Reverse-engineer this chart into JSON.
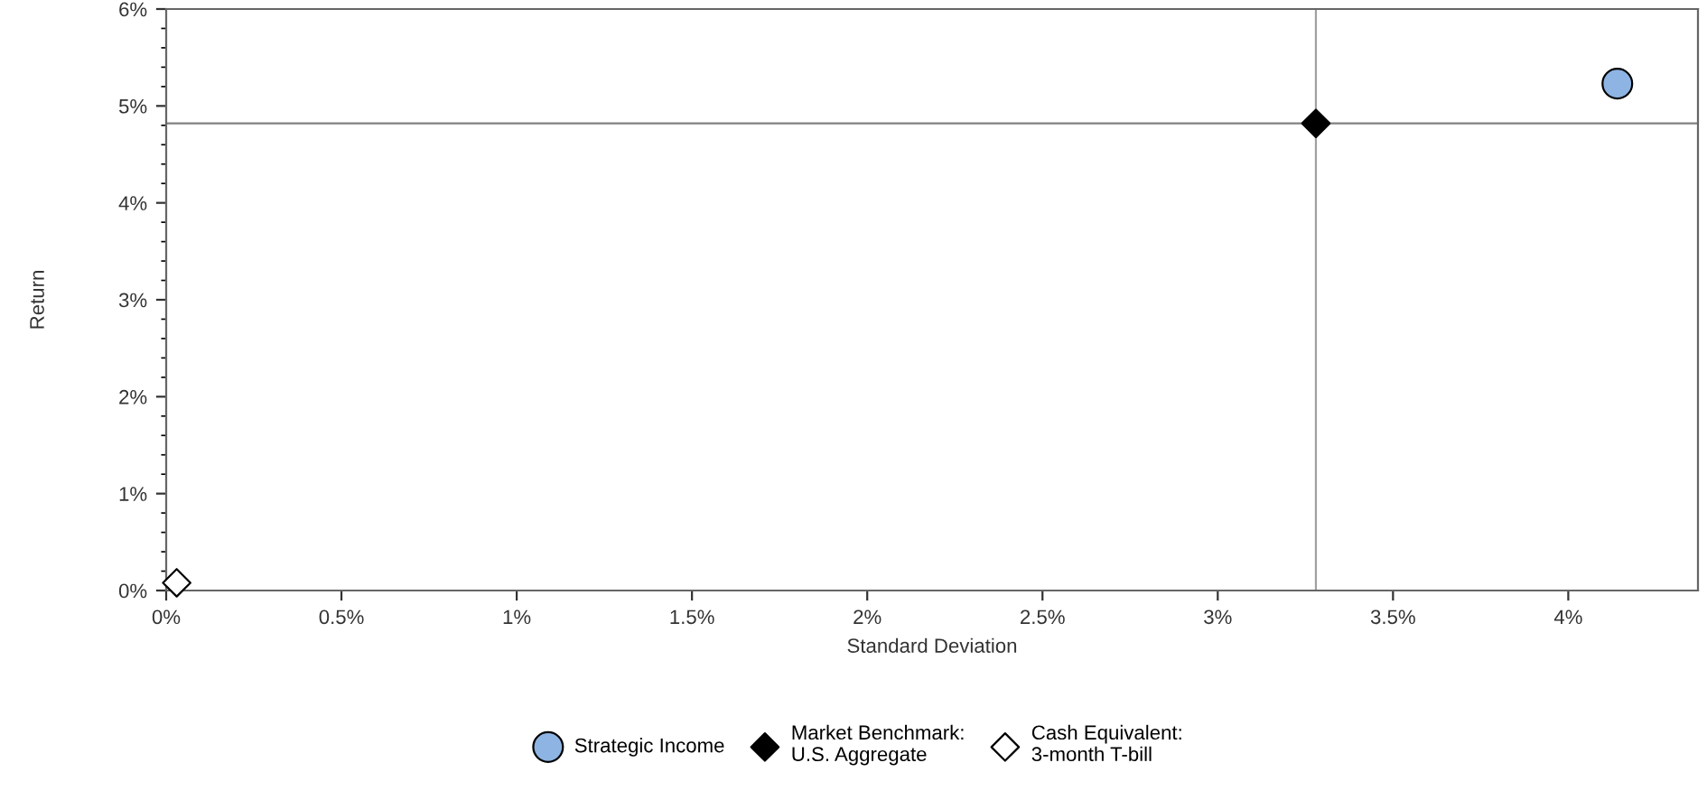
{
  "chart_data": {
    "type": "scatter",
    "xlabel": "Standard Deviation",
    "ylabel": "Return",
    "series": [
      {
        "name": "Strategic Income",
        "color": "#8db4e2",
        "marker": "circle",
        "x": [
          4.14
        ],
        "values": [
          5.23
        ]
      },
      {
        "name": "Market Benchmark:\nU.S. Aggregate",
        "color": "#000000",
        "marker": "diamond",
        "x": [
          3.28
        ],
        "values": [
          4.82
        ]
      },
      {
        "name": "Cash Equivalent:\n3-month T-bill",
        "color": "#ffffff",
        "marker": "diamond",
        "x": [
          0.03
        ],
        "values": [
          0.08
        ]
      }
    ],
    "ref_lines": [
      {
        "axis": "x",
        "value": 3.28,
        "color": "#a0a0a0"
      },
      {
        "axis": "y",
        "value": 4.82,
        "color": "#808080"
      }
    ],
    "xlim": [
      0,
      4.37
    ],
    "ylim": [
      0,
      6
    ],
    "xticks": [
      {
        "value": 0,
        "label": "0%"
      },
      {
        "value": 0.5,
        "label": "0.5%"
      },
      {
        "value": 1,
        "label": "1%"
      },
      {
        "value": 1.5,
        "label": "1.5%"
      },
      {
        "value": 2,
        "label": "2%"
      },
      {
        "value": 2.5,
        "label": "2.5%"
      },
      {
        "value": 3,
        "label": "3%"
      },
      {
        "value": 3.5,
        "label": "3.5%"
      },
      {
        "value": 4,
        "label": "4%"
      }
    ],
    "yticks": [
      {
        "value": 0,
        "label": "0%"
      },
      {
        "value": 1,
        "label": "1%"
      },
      {
        "value": 2,
        "label": "2%"
      },
      {
        "value": 3,
        "label": "3%"
      },
      {
        "value": 4,
        "label": "4%"
      },
      {
        "value": 5,
        "label": "5%"
      },
      {
        "value": 6,
        "label": "6%"
      }
    ],
    "grid": false,
    "legend": "bottom"
  }
}
